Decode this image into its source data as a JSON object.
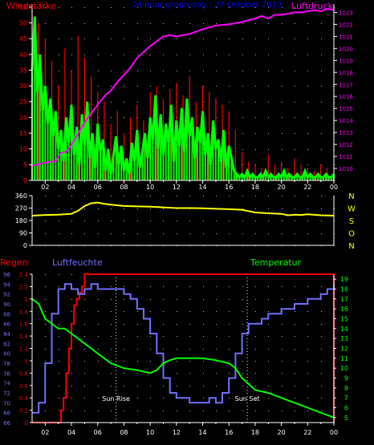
{
  "colors": {
    "background": "#000000",
    "axis": "#ffffff",
    "grid_dot": "#bbbbbb",
    "gust": "#ff0000",
    "wind": "#00ff00",
    "pressure": "#ff00ff",
    "direction": "#ffff00",
    "rain": "#ff0000",
    "humidity": "#7070ff",
    "temperature": "#00ff00",
    "title": "#0000ff",
    "right_axis_top": "#ff00ff",
    "right_axis_dir": "#ffff00",
    "left_axis_rain": "#ff0000",
    "left_axis_hum": "#7070ff",
    "right_axis_temp": "#00ff00"
  },
  "chart_data": [
    {
      "type": "line",
      "title": "24 hour graph day : 27 October 2013",
      "ylabel_left": "Windstärke",
      "ylabel_right": "Luftdruck",
      "x_ticks": [
        "02",
        "04",
        "06",
        "08",
        "10",
        "12",
        "14",
        "16",
        "18",
        "20",
        "22",
        "00"
      ],
      "x_range_hours": [
        1.0,
        24.0
      ],
      "y_left_ticks": [
        0,
        5,
        10,
        15,
        20,
        25,
        30,
        35,
        40,
        45,
        50,
        55
      ],
      "y_left_range": [
        0,
        56
      ],
      "y_right_ticks": [
        1010,
        1011,
        1012,
        1013,
        1014,
        1015,
        1016,
        1017,
        1018,
        1019,
        1020,
        1021,
        1022,
        1023
      ],
      "y_right_range": [
        1009,
        1023.7
      ],
      "grid": true,
      "series": [
        {
          "name": "Luftdruck",
          "axis": "right",
          "x": [
            1.0,
            2.0,
            2.8,
            3.2,
            3.6,
            3.9,
            4.2,
            4.6,
            5.0,
            5.5,
            6.0,
            6.5,
            7.0,
            7.5,
            8.0,
            8.5,
            9.0,
            9.5,
            10.0,
            10.5,
            11.0,
            11.5,
            12.0,
            12.5,
            13.0,
            14.0,
            15.0,
            16.0,
            17.0,
            18.0,
            18.5,
            19.0,
            19.5,
            20.0,
            20.5,
            21.0,
            21.5,
            22.0,
            22.5,
            23.0,
            23.5,
            24.0
          ],
          "values": [
            1010.2,
            1010.5,
            1010.6,
            1011.3,
            1011.4,
            1011.8,
            1012.3,
            1013.1,
            1013.8,
            1014.6,
            1015.3,
            1016.0,
            1016.5,
            1017.2,
            1017.8,
            1018.4,
            1019.2,
            1019.7,
            1020.2,
            1020.6,
            1021.0,
            1021.1,
            1021.0,
            1021.1,
            1021.2,
            1021.6,
            1021.9,
            1022.0,
            1022.2,
            1022.5,
            1022.7,
            1022.5,
            1022.8,
            1022.8,
            1022.9,
            1023.0,
            1023.0,
            1023.1,
            1023.2,
            1023.1,
            1023.3,
            1023.2
          ]
        },
        {
          "name": "Wind",
          "axis": "left",
          "x": [
            1.0,
            1.2,
            1.4,
            1.6,
            1.8,
            2.0,
            2.2,
            2.4,
            2.6,
            2.8,
            3.0,
            3.2,
            3.4,
            3.6,
            3.8,
            4.0,
            4.2,
            4.4,
            4.6,
            4.8,
            5.0,
            5.2,
            5.4,
            5.6,
            5.8,
            6.0,
            6.2,
            6.4,
            6.6,
            6.8,
            7.0,
            7.2,
            7.4,
            7.6,
            7.8,
            8.0,
            8.2,
            8.4,
            8.6,
            8.8,
            9.0,
            9.2,
            9.4,
            9.6,
            9.8,
            10.0,
            10.2,
            10.4,
            10.6,
            10.8,
            11.0,
            11.2,
            11.4,
            11.6,
            11.8,
            12.0,
            12.2,
            12.4,
            12.6,
            12.8,
            13.0,
            13.2,
            13.4,
            13.6,
            13.8,
            14.0,
            14.2,
            14.4,
            14.6,
            14.8,
            15.0,
            15.2,
            15.4,
            15.6,
            15.8,
            16.0,
            16.2,
            16.4,
            16.6,
            16.8,
            17.0,
            17.2,
            17.4,
            17.6,
            17.8,
            18.0,
            18.2,
            18.4,
            18.6,
            18.8,
            19.0,
            19.2,
            19.4,
            19.6,
            19.8,
            20.0,
            20.2,
            20.4,
            20.6,
            20.8,
            21.0,
            21.2,
            21.4,
            21.6,
            21.8,
            22.0,
            22.2,
            22.4,
            22.6,
            22.8,
            23.0,
            23.2,
            23.4,
            23.6,
            23.8,
            24.0
          ],
          "values": [
            35,
            52,
            28,
            40,
            22,
            30,
            18,
            26,
            14,
            22,
            10,
            16,
            6,
            20,
            12,
            24,
            8,
            17,
            5,
            21,
            11,
            25,
            7,
            15,
            4,
            18,
            9,
            13,
            3,
            10,
            2,
            8,
            14,
            5,
            11,
            3,
            7,
            2,
            12,
            6,
            16,
            4,
            9,
            15,
            7,
            20,
            13,
            27,
            10,
            21,
            8,
            18,
            12,
            24,
            6,
            19,
            11,
            23,
            9,
            26,
            14,
            20,
            7,
            17,
            12,
            22,
            8,
            15,
            5,
            19,
            10,
            13,
            6,
            16,
            4,
            11,
            7,
            3,
            2,
            1,
            2,
            1,
            3,
            1,
            2,
            1,
            1,
            2,
            1,
            3,
            1,
            2,
            1,
            1,
            2,
            1,
            3,
            1,
            2,
            1,
            1,
            2,
            1,
            1,
            3,
            1,
            2,
            1,
            1,
            2,
            1,
            1,
            2,
            1,
            1,
            2
          ]
        },
        {
          "name": "Böen",
          "axis": "left",
          "x": [
            1.0,
            1.5,
            2.0,
            2.5,
            3.0,
            3.5,
            4.0,
            4.5,
            5.0,
            5.5,
            6.0,
            6.5,
            7.0,
            7.5,
            8.0,
            8.5,
            9.0,
            9.5,
            10.0,
            10.5,
            11.0,
            11.5,
            12.0,
            12.5,
            13.0,
            13.5,
            14.0,
            14.5,
            15.0,
            15.5,
            16.0,
            16.5,
            17.0,
            17.5,
            18.0,
            18.5,
            19.0,
            19.5,
            20.0,
            20.5,
            21.0,
            21.5,
            22.0,
            22.5,
            23.0,
            23.5,
            24.0
          ],
          "values": [
            55,
            50,
            45,
            38,
            30,
            42,
            35,
            46,
            39,
            33,
            28,
            25,
            18,
            22,
            15,
            20,
            24,
            19,
            28,
            30,
            26,
            29,
            31,
            27,
            33,
            25,
            30,
            28,
            26,
            24,
            22,
            16,
            9,
            6,
            5,
            4,
            8,
            5,
            6,
            4,
            7,
            5,
            4,
            3,
            5,
            4,
            3
          ]
        },
        {
          "name": "Windrichtung",
          "axis": "dir",
          "x": [
            1.0,
            2.0,
            3.0,
            4.0,
            4.5,
            5.0,
            5.5,
            6.0,
            6.5,
            7.0,
            8.0,
            9.0,
            10.0,
            11.0,
            12.0,
            13.0,
            14.0,
            15.0,
            16.0,
            17.0,
            17.5,
            18.0,
            19.0,
            20.0,
            20.5,
            21.0,
            21.5,
            22.0,
            23.0,
            24.0
          ],
          "values": [
            215,
            220,
            222,
            228,
            250,
            285,
            305,
            310,
            300,
            295,
            285,
            282,
            280,
            275,
            270,
            270,
            268,
            265,
            262,
            258,
            248,
            238,
            232,
            228,
            218,
            222,
            220,
            225,
            218,
            215
          ]
        }
      ]
    },
    {
      "type": "line",
      "title": "",
      "ylabel_left": "Regen",
      "ylabel_left2": "Luftfeuchte",
      "ylabel_right": "Temperatur",
      "x_ticks": [
        "02",
        "04",
        "06",
        "08",
        "10",
        "12",
        "14",
        "16",
        "18",
        "20",
        "22",
        "00"
      ],
      "x_range_hours": [
        1.0,
        24.0
      ],
      "rain_ticks": [
        0,
        0.2,
        0.4,
        0.6,
        0.8,
        1,
        1.2,
        1.4,
        1.6,
        1.8,
        2,
        2.2,
        2.4
      ],
      "rain_range": [
        0,
        2.4
      ],
      "humidity_ticks": [
        66,
        68,
        70,
        72,
        74,
        76,
        78,
        80,
        82,
        84,
        86,
        88,
        90,
        92,
        94,
        96
      ],
      "humidity_range": [
        66,
        96
      ],
      "temp_ticks": [
        5,
        6,
        7,
        8,
        9,
        10,
        11,
        12,
        13,
        14,
        15,
        16,
        17,
        18,
        19
      ],
      "temp_range": [
        4.5,
        19.5
      ],
      "annotations": [
        {
          "label": "Sun Rise",
          "x": 7.4
        },
        {
          "label": "Sun Set",
          "x": 17.4
        }
      ],
      "grid": true,
      "series": [
        {
          "name": "Regen",
          "axis": "rain",
          "x": [
            1.0,
            2.0,
            3.0,
            3.2,
            3.4,
            3.6,
            3.8,
            4.0,
            4.2,
            4.4,
            4.6,
            4.8,
            5.0,
            5.2,
            24.0
          ],
          "values": [
            0,
            0,
            0,
            0.2,
            0.4,
            0.8,
            1.2,
            1.6,
            1.9,
            2.0,
            2.1,
            2.2,
            2.4,
            2.4,
            2.4
          ]
        },
        {
          "name": "Luftfeuchte",
          "axis": "humidity",
          "x": [
            1.0,
            1.5,
            2.0,
            2.5,
            3.0,
            3.5,
            4.0,
            4.5,
            5.0,
            5.5,
            6.0,
            7.0,
            8.0,
            8.5,
            9.0,
            9.5,
            10.0,
            10.5,
            11.0,
            11.5,
            12.0,
            12.5,
            13.0,
            13.5,
            14.0,
            14.5,
            15.0,
            15.5,
            16.0,
            16.5,
            17.0,
            17.5,
            18.0,
            18.5,
            19.0,
            20.0,
            21.0,
            22.0,
            23.0,
            23.5,
            24.0
          ],
          "values": [
            68,
            70,
            78,
            88,
            93,
            94,
            93,
            92,
            93,
            94,
            93,
            93,
            92,
            91,
            89,
            87,
            84,
            80,
            75,
            72,
            71,
            71,
            70,
            70,
            70,
            71,
            70,
            72,
            75,
            80,
            84,
            86,
            86,
            87,
            88,
            89,
            90,
            91,
            92,
            93,
            94
          ]
        },
        {
          "name": "Temperatur",
          "axis": "temp",
          "x": [
            1.0,
            1.5,
            2.0,
            2.5,
            3.0,
            3.5,
            4.0,
            4.5,
            5.0,
            5.5,
            6.0,
            7.0,
            8.0,
            9.0,
            10.0,
            10.5,
            11.0,
            11.5,
            12.0,
            13.0,
            14.0,
            15.0,
            16.0,
            16.5,
            17.0,
            18.0,
            19.0,
            20.0,
            21.0,
            22.0,
            23.0,
            24.0
          ],
          "values": [
            17.0,
            16.5,
            15.0,
            14.5,
            14.0,
            14.0,
            13.5,
            13.0,
            12.5,
            12.0,
            11.5,
            10.5,
            10.0,
            9.8,
            9.5,
            9.8,
            10.5,
            10.8,
            11.0,
            11.0,
            11.0,
            10.8,
            10.5,
            10.0,
            9.0,
            7.8,
            7.5,
            7.0,
            6.5,
            6.0,
            5.5,
            5.0
          ]
        }
      ]
    }
  ],
  "labels": {
    "windstaerke": "Windstärke",
    "title": "24 hour graph day : 27 October 2013",
    "luftdruck": "Luftdruck",
    "regen": "Regen",
    "luftfeuchte": "Luftfeuchte",
    "temperatur": "Temperatur",
    "dir_letters": [
      "N",
      "W",
      "S",
      "O",
      "N"
    ],
    "dir_ticks": [
      0,
      90,
      180,
      270,
      360
    ]
  }
}
